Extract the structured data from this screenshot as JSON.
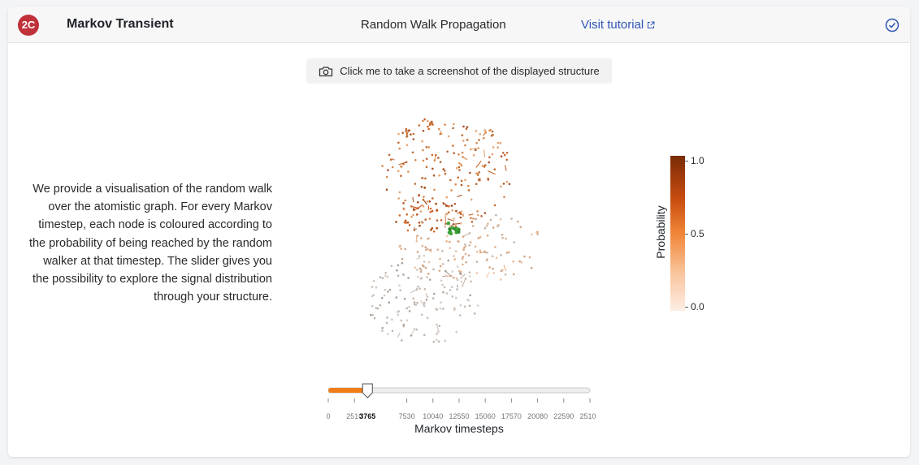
{
  "header": {
    "badge": "2C",
    "app_title": "Markov Transient",
    "page_title": "Random Walk Propagation",
    "tutorial_link": "Visit tutorial",
    "status_icon": "check-circle-icon"
  },
  "screenshot_button": {
    "label": "Click me to take a screenshot of the displayed structure",
    "icon": "camera-icon"
  },
  "description": "We provide a visualisation of the random walk over the atomistic graph. For every Markov timestep, each node is coloured according to the probability of being reached by the random walker at that timestep. The slider gives you the possibility to explore the signal distribution through your structure.",
  "colorbar": {
    "title": "Probability",
    "ticks": [
      "1.0",
      "0.5",
      "0.0"
    ],
    "colors": [
      "#7a2b06",
      "#f08538",
      "#fdeee5"
    ]
  },
  "slider": {
    "ticks": [
      "0",
      "2510",
      "7530",
      "10040",
      "12550",
      "15060",
      "17570",
      "20080",
      "22590",
      "25100"
    ],
    "value_label": "3765",
    "value": 3765,
    "min": 0,
    "max": 25100,
    "fill_color": "#f07d1a",
    "axis_label": "Markov timesteps"
  }
}
